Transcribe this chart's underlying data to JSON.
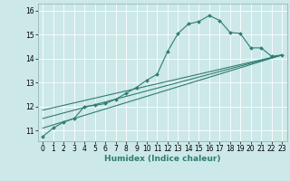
{
  "xlabel": "Humidex (Indice chaleur)",
  "background_color": "#cce8e8",
  "grid_color": "#ffffff",
  "line_color": "#2e7d6e",
  "xlim": [
    -0.5,
    23.5
  ],
  "ylim": [
    10.55,
    16.3
  ],
  "yticks": [
    11,
    12,
    13,
    14,
    15,
    16
  ],
  "xticks": [
    0,
    1,
    2,
    3,
    4,
    5,
    6,
    7,
    8,
    9,
    10,
    11,
    12,
    13,
    14,
    15,
    16,
    17,
    18,
    19,
    20,
    21,
    22,
    23
  ],
  "series1_x": [
    0,
    1,
    2,
    3,
    4,
    5,
    6,
    7,
    8,
    9,
    10,
    11,
    12,
    13,
    14,
    15,
    16,
    17,
    18,
    19,
    20,
    21,
    22,
    23
  ],
  "series1_y": [
    10.75,
    11.1,
    11.35,
    11.5,
    12.0,
    12.05,
    12.12,
    12.3,
    12.55,
    12.8,
    13.1,
    13.35,
    14.3,
    15.05,
    15.45,
    15.55,
    15.8,
    15.6,
    15.1,
    15.05,
    14.45,
    14.45,
    14.1,
    14.15
  ],
  "series2_x": [
    0,
    23
  ],
  "series2_y": [
    11.85,
    14.15
  ],
  "series3_x": [
    0,
    23
  ],
  "series3_y": [
    11.5,
    14.15
  ],
  "series4_x": [
    0,
    23
  ],
  "series4_y": [
    11.1,
    14.15
  ],
  "marker_size": 2.0,
  "line_width": 0.8,
  "tick_fontsize": 5.5,
  "xlabel_fontsize": 6.5
}
